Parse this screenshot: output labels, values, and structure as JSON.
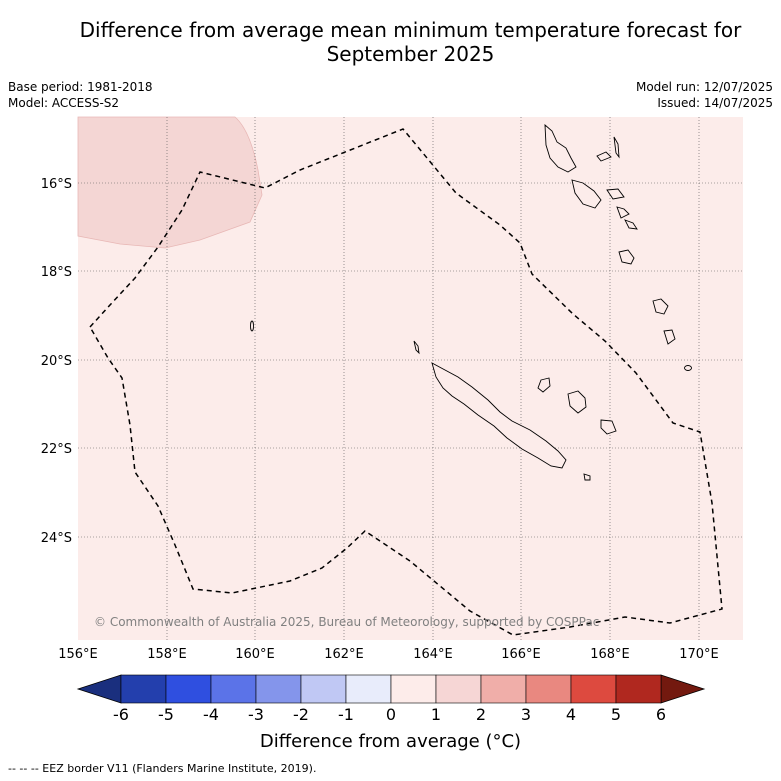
{
  "title_line1": "Difference from average mean minimum temperature forecast for",
  "title_line2": "September 2025",
  "base_period": "Base period: 1981-2018",
  "model": "Model: ACCESS-S2",
  "model_run": "Model run: 12/07/2025",
  "issued": "Issued: 14/07/2025",
  "copyright": "© Commonwealth of Australia 2025, Bureau of Meteorology, supported by COSPPac",
  "lat_labels": [
    "16°S",
    "18°S",
    "20°S",
    "22°S",
    "24°S"
  ],
  "lon_labels": [
    "156°E",
    "158°E",
    "160°E",
    "162°E",
    "164°E",
    "166°E",
    "168°E",
    "170°E"
  ],
  "colorbar": {
    "label": "Difference from average (°C)",
    "ticks": [
      "-6",
      "-5",
      "-4",
      "-3",
      "-2",
      "-1",
      "0",
      "1",
      "2",
      "3",
      "4",
      "5",
      "6"
    ],
    "colors": [
      "#1a2f7e",
      "#233fad",
      "#2f4fe0",
      "#5b73e8",
      "#8495eb",
      "#c0c8f4",
      "#e8ecfb",
      "#fdecea",
      "#f6d6d5",
      "#f0aea9",
      "#e98880",
      "#dd4a3f",
      "#b0281f",
      "#73190f"
    ]
  },
  "background_anomaly_color": "#fcecea",
  "patch_anomaly_color": "#f4d6d4",
  "footer": "--  --  -- EEZ border V11 (Flanders Marine Institute, 2019)."
}
